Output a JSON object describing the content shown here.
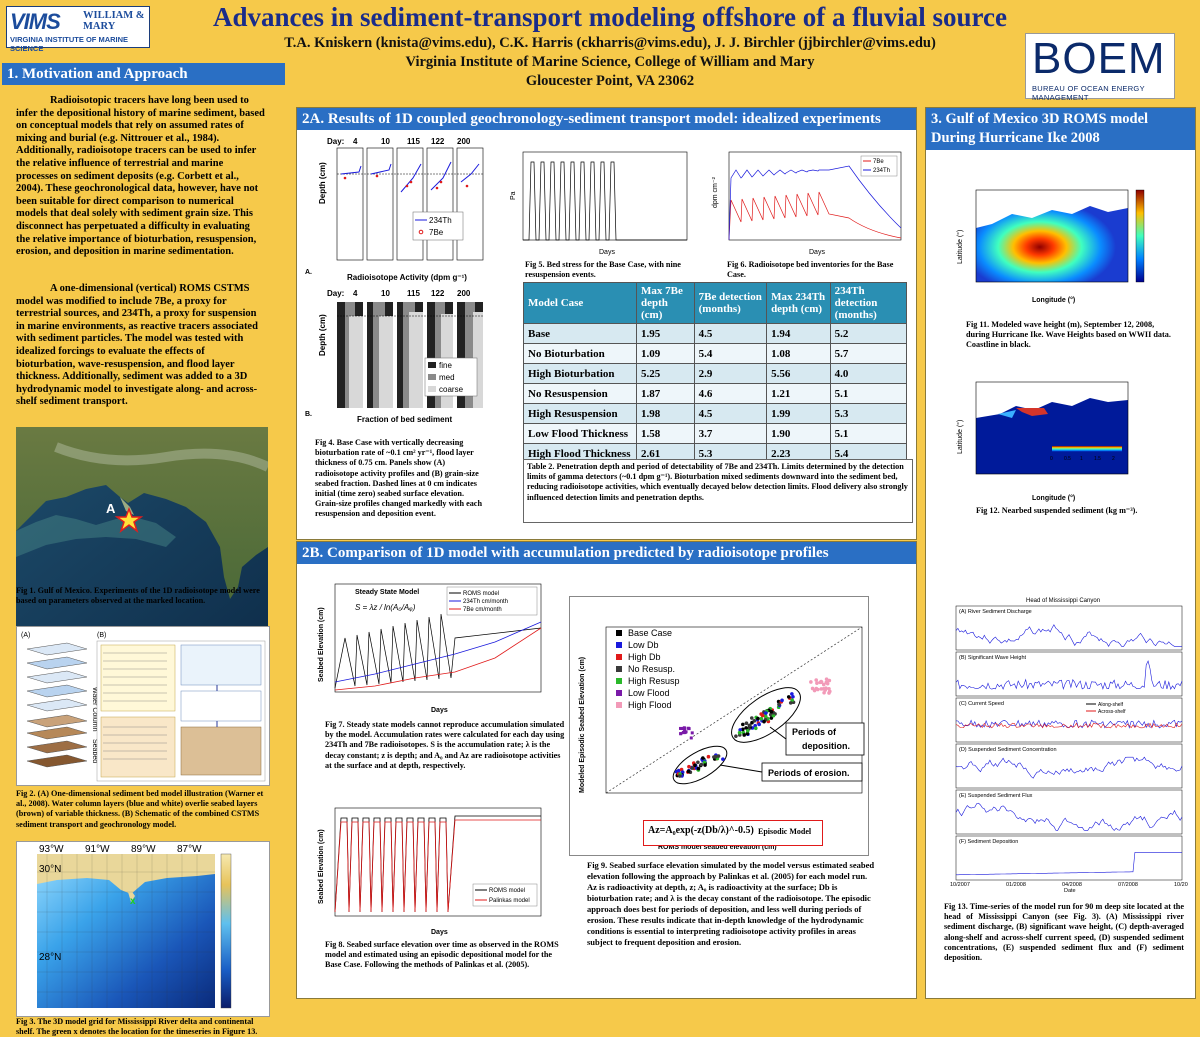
{
  "header": {
    "title": "Advances in sediment-transport modeling offshore of a fluvial source",
    "authors": "T.A. Kniskern (knista@vims.edu), C.K. Harris (ckharris@vims.edu),  J. J. Birchler  (jjbirchler@vims.edu)",
    "affiliation": "Virginia Institute of Marine Science, College of William and Mary",
    "location": "Gloucester Point, VA 23062",
    "vims_logo": {
      "short": "VIMS",
      "wm": "WILLIAM & MARY",
      "full": "VIRGINIA INSTITUTE OF MARINE SCIENCE"
    },
    "boem_logo": {
      "short": "BOEM",
      "full": "BUREAU OF OCEAN ENERGY MANAGEMENT"
    }
  },
  "section1": {
    "title": "1. Motivation and Approach",
    "para1": "Radioisotopic tracers have long been used to infer the depositional history of marine sediment, based on conceptual models that rely on assumed rates of mixing and burial (e.g. Nittrouer et al., 1984). Additionally, radioisotope tracers can be used to infer the relative influence of terrestrial and marine processes on sediment deposits (e.g. Corbett et al., 2004).  These geochronological data, however, have not been suitable for direct comparison to numerical models that deal solely with sediment grain size.  This disconnect has perpetuated a difficulty in evaluating the relative importance of bioturbation, resuspension, erosion, and deposition in marine sedimentation.",
    "para2": "A one-dimensional (vertical) ROMS CSTMS model was modified to include 7Be, a proxy for terrestrial sources, and 234Th, a proxy for suspension in marine environments, as reactive tracers associated with sediment particles. The model was tested with idealized forcings  to evaluate the effects of bioturbation, wave-resuspension, and flood layer thickness. Additionally, sediment was added to a 3D hydrodynamic model to investigate along- and across-shelf  sediment transport.",
    "fig1_marker": "A",
    "fig1_caption": "Fig 1. Gulf of Mexico. Experiments of the 1D radioisotope model were based on parameters observed at the marked location.",
    "fig2_caption": "Fig 2. (A) One-dimensional sediment bed model illustration (Warner et al., 2008).  Water column layers (blue and white) overlie seabed layers (brown) of variable thickness. (B) Schematic of the combined CSTMS sediment transport and geochronology model.",
    "fig2_labels": {
      "a": "(A)",
      "b": "(B)",
      "water_column": "Water Column",
      "seabed": "Seabed"
    },
    "fig3_caption": "Fig 3. The 3D model grid for Mississippi River delta and continental shelf. The green x denotes the location for the timeseries in Figure 13.",
    "fig3_lon": [
      "93°W",
      "91°W",
      "89°W",
      "87°W"
    ],
    "fig3_lat": [
      "30°N",
      "28°N"
    ]
  },
  "section2a": {
    "title": "2A. Results of 1D coupled geochronology-sediment transport model: idealized experiments",
    "fig4a_days": [
      "Day:",
      "4",
      "10",
      "115",
      "122",
      "200"
    ],
    "fig4a_xlabel": "Radioisotope Activity (dpm g⁻¹)",
    "fig4a_ylabel": "Depth (cm)",
    "fig4a_legend": [
      "234Th",
      "7Be"
    ],
    "fig4b_xlabel": "Fraction of bed sediment",
    "fig4b_legend": [
      "fine",
      "med",
      "coarse"
    ],
    "fig4_caption": "Fig 4. Base Case with vertically decreasing bioturbation rate of  ~0.1 cm² yr⁻¹, flood layer thickness of 0.75 cm. Panels show (A) radioisotope activity profiles and (B) grain-size seabed fraction. Dashed lines at 0 cm indicates initial (time zero) seabed  surface elevation.  Grain-size profiles changed markedly with each resuspension and deposition event.",
    "fig5_caption": "Fig 5. Bed stress for the Base Case, with nine resuspension events.",
    "fig5_xlabel": "Days",
    "fig5_ylabel": "Pa",
    "fig6_caption": "Fig 6. Radioisotope bed inventories for the Base Case.",
    "fig6_xlabel": "Days",
    "fig6_ylabel": "dpm cm⁻²",
    "fig6_legend": [
      "7Be",
      "234Th"
    ],
    "table_headers": [
      "Model Case",
      "Max 7Be depth (cm)",
      "7Be detection (months)",
      "Max 234Th depth (cm)",
      "234Th detection (months)"
    ],
    "table_rows": [
      [
        "Base",
        "1.95",
        "4.5",
        "1.94",
        "5.2"
      ],
      [
        "No Bioturbation",
        "1.09",
        "5.4",
        "1.08",
        "5.7"
      ],
      [
        "High Bioturbation",
        "5.25",
        "2.9",
        "5.56",
        "4.0"
      ],
      [
        "No Resuspension",
        "1.87",
        "4.6",
        "1.21",
        "5.1"
      ],
      [
        "High Resuspension",
        "1.98",
        "4.5",
        "1.99",
        "5.3"
      ],
      [
        "Low Flood Thickness",
        "1.58",
        "3.7",
        "1.90",
        "5.1"
      ],
      [
        "High Flood Thickness",
        "2.61",
        "5.3",
        "2.23",
        "5.4"
      ]
    ],
    "table_caption": "Table 2.  Penetration depth and period of detectability of 7Be and 234Th. Limits determined by the detection limits of gamma detectors (~0.1 dpm g⁻¹). Bioturbation mixed sediments downward into the sediment bed, reducing radioisotope activities, which eventually decayed below detection limits. Flood delivery also strongly influenced detection limits and penetration depths."
  },
  "section2b": {
    "title": "2B. Comparison of 1D model with accumulation predicted by radioisotope profiles",
    "fig7_title": "Steady State Model",
    "fig7_equation": "S = λz / ln(A₀/Aᵩ)",
    "fig7_legend": [
      "ROMS model",
      "234Th cm/month",
      "7Be cm/month"
    ],
    "fig7_ylabel": "Seabed Elevation (cm)",
    "fig7_xlabel": "Days",
    "fig7_caption": "Fig 7. Steady state models cannot reproduce accumulation simulated by the model. Accumulation rates were calculated for each day using 234Th and 7Be radioisotopes. S is the accumulation rate; λ is the decay constant; z is depth; and A₀ and Az are radioisotope activities at the surface and at depth, respectively.",
    "fig8_legend": [
      "ROMS model",
      "Palinkas model"
    ],
    "fig8_ylabel": "Seabed Elevation (cm)",
    "fig8_xlabel": "Days",
    "fig8_caption": "Fig 8. Seabed surface elevation over time as observed in the ROMS model and estimated using an episodic depositional model for the Base Case.  Following the methods of Palinkas et al. (2005).",
    "fig9_legend": [
      "Base Case",
      "Low Db",
      "High Db",
      "No Resusp.",
      "High Resusp",
      "Low Flood",
      "High Flood"
    ],
    "fig9_colors": [
      "#000000",
      "#1a1adc",
      "#e01a1a",
      "#3a3a3a",
      "#2ab82a",
      "#7a1aa8",
      "#f29ab8"
    ],
    "fig9_xlabel": "ROMS model seabed elevation (cm)",
    "fig9_ylabel": "Modeled Episodic Seabed Elevation (cm)",
    "fig9_box_deposition": "Periods of deposition.",
    "fig9_box_erosion": "Periods of erosion.",
    "fig9_equation": "Az=A₀exp(-z(Db/λ)^-0.5)",
    "fig9_eq_label": "Episodic Model",
    "fig9_caption": "Fig 9. Seabed surface elevation simulated by the model versus estimated seabed elevation following the approach by Palinkas et al. (2005) for each model run.  Az is radioactivity at depth, z; A₀ is radioactivity at the surface; Db is bioturbation rate; and λ is the decay constant of the radioisotope. The episodic approach does best for periods of deposition, and less well during periods of erosion. These results indicate that in-depth knowledge of the hydrodynamic conditions is essential to interpreting radioisotope activity profiles in areas subject to frequent deposition and erosion."
  },
  "section3": {
    "title": "3. Gulf of Mexico 3D ROMS model During Hurricane Ike 2008",
    "fig11_ylabel": "Latitude (°)",
    "fig11_xlabel": "Longitude (°)",
    "fig11_caption": "Fig 11.   Modeled wave height (m), September 12, 2008, during Hurricane Ike.  Wave Heights based on WWII data. Coastline in black.",
    "fig12_ylabel": "Latitude (°)",
    "fig12_xlabel": "Longitude (°)",
    "fig12_colorbar": [
      "0",
      "0.5",
      "1",
      "1.5",
      "2"
    ],
    "fig12_caption": "Fig 12. Nearbed suspended sediment (kg m⁻³).",
    "fig13_head": "Head of Mississippi Canyon",
    "fig13_panels": [
      "(A) River Sediment Discharge",
      "(B) Significant Wave Height",
      "(C) Current Speed",
      "(D) Suspended Sediment Concentration",
      "(E) Suspended Sediment Flux",
      "(F) Sediment Deposition"
    ],
    "fig13_legend": [
      "Along-shelf",
      "Across-shelf"
    ],
    "fig13_dates": [
      "10/2007",
      "01/2008",
      "04/2008",
      "07/2008",
      "10/2008"
    ],
    "fig13_xlabel": "Date",
    "fig13_caption": "Fig 13. Time-series of the model run for 90 m deep site located at the head of Mississippi Canyon (see Fig. 3). (A) Mississippi river sediment discharge, (B) significant wave height, (C) depth-averaged along-shelf and across-shelf current speed, (D) suspended sediment concentrations, (E) suspended sediment flux and (F) sediment deposition."
  },
  "colors": {
    "background": "#f6c94a",
    "panel_title": "#2a6fc4",
    "title_text": "#1a2c8a",
    "table_header": "#2a8fb3"
  }
}
